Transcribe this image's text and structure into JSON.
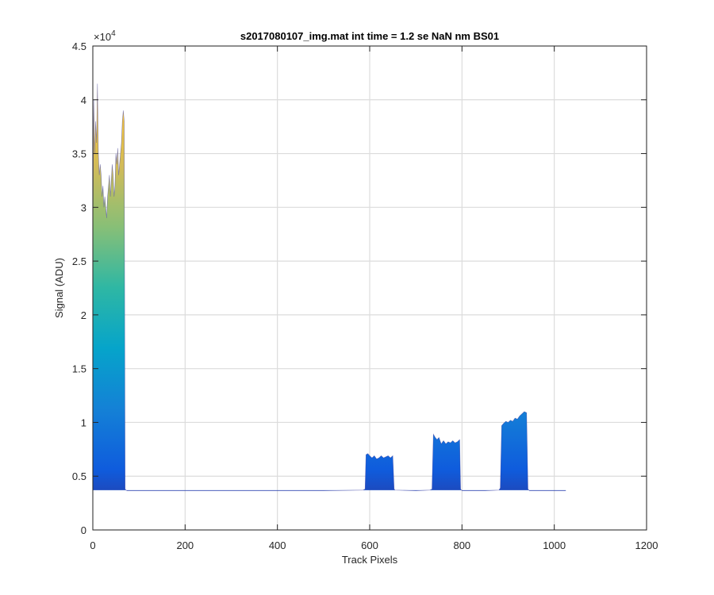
{
  "chart_data": {
    "type": "area",
    "title": "s2017080107_img.mat int time = 1.2 se  NaN nm BS01",
    "xlabel": "Track Pixels",
    "ylabel": "Signal (ADU)",
    "xlim": [
      0,
      1200
    ],
    "ylim": [
      0,
      45000
    ],
    "x_ticks": [
      0,
      200,
      400,
      600,
      800,
      1000,
      1200
    ],
    "y_ticks": [
      0,
      5000,
      10000,
      15000,
      20000,
      25000,
      30000,
      35000,
      40000,
      45000
    ],
    "x_tick_labels": [
      "0",
      "200",
      "400",
      "600",
      "800",
      "1000",
      "1200"
    ],
    "y_tick_labels": [
      "0",
      "0.5",
      "1",
      "1.5",
      "2",
      "2.5",
      "3",
      "3.5",
      "4",
      "4.5"
    ],
    "y_exponent_label": "×10",
    "y_exponent_power": "4",
    "grid": true,
    "baseline": 3700,
    "colormap": [
      "#352a87",
      "#0f5cdd",
      "#1481d6",
      "#06a4ca",
      "#2eb7a4",
      "#87bf77",
      "#d1bb59",
      "#fec832",
      "#f9fb0e"
    ],
    "series": [
      {
        "x": [
          0,
          2,
          4,
          6,
          8,
          10,
          12,
          14,
          16,
          18,
          20,
          22,
          24,
          26,
          28,
          30,
          32,
          34,
          36,
          38,
          40,
          42,
          44,
          46,
          48,
          50,
          52,
          54,
          56,
          58,
          60,
          62,
          64,
          66,
          68,
          70,
          72,
          74,
          80,
          100,
          200,
          300,
          400,
          500,
          585,
          590,
          592,
          596,
          600,
          605,
          610,
          615,
          620,
          625,
          630,
          635,
          640,
          645,
          650,
          653,
          655,
          700,
          730,
          735,
          738,
          742,
          746,
          750,
          755,
          760,
          765,
          770,
          775,
          780,
          785,
          790,
          795,
          797,
          800,
          850,
          880,
          883,
          886,
          890,
          895,
          900,
          905,
          910,
          915,
          920,
          925,
          930,
          935,
          940,
          943,
          946,
          1000,
          1025
        ],
        "y": [
          27000,
          40000,
          35000,
          38000,
          36000,
          41500,
          35000,
          33000,
          34000,
          33000,
          31000,
          32000,
          30000,
          31000,
          30000,
          29000,
          31000,
          32000,
          33000,
          31000,
          32500,
          34000,
          33000,
          31000,
          32000,
          35000,
          34000,
          35500,
          33000,
          34000,
          35000,
          36000,
          38000,
          39000,
          38000,
          3800,
          3700,
          3650,
          3650,
          3650,
          3650,
          3650,
          3650,
          3650,
          3700,
          3800,
          7000,
          7100,
          6900,
          6700,
          6900,
          6600,
          6700,
          6900,
          6700,
          6800,
          6900,
          6700,
          6900,
          3800,
          3700,
          3650,
          3700,
          3800,
          8900,
          8600,
          8400,
          8600,
          8000,
          8300,
          8000,
          8200,
          8100,
          8300,
          8100,
          8200,
          8400,
          3800,
          3650,
          3650,
          3700,
          3900,
          9700,
          9900,
          10100,
          10000,
          10200,
          10100,
          10400,
          10300,
          10600,
          10800,
          11000,
          10900,
          3800,
          3650,
          3650,
          3650
        ]
      }
    ]
  }
}
